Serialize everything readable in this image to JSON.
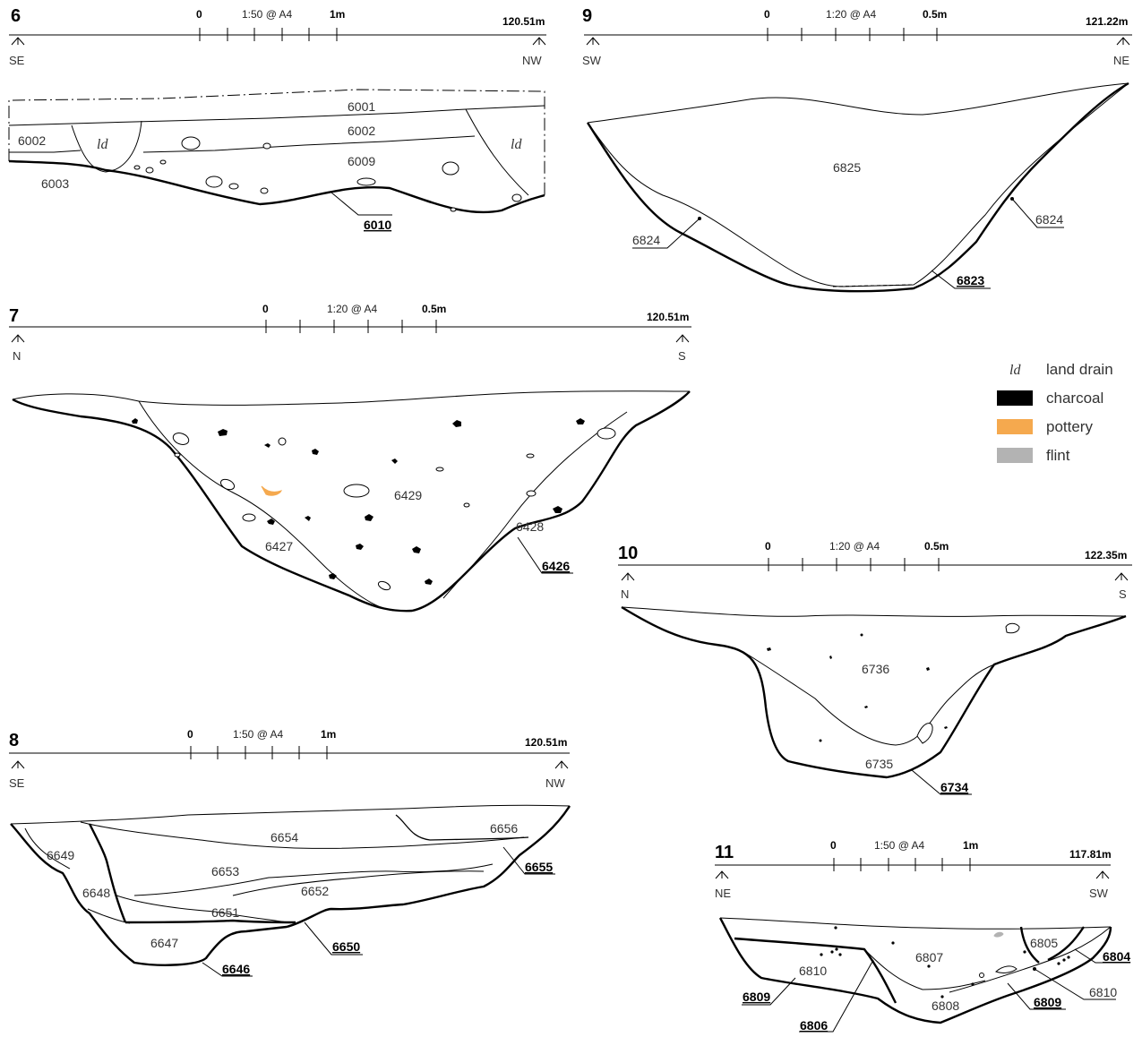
{
  "sections": [
    {
      "number": "6",
      "scale": {
        "zero": "0",
        "ratio": "1:50 @ A4",
        "end": "1m"
      },
      "elevation": "120.51m",
      "dir_left": "SE",
      "dir_right": "NW",
      "layers": [
        "6001",
        "6002",
        "6002",
        "6009",
        "6003"
      ],
      "fills_italic": [
        "ld",
        "ld"
      ],
      "cuts": [
        "6010"
      ]
    },
    {
      "number": "9",
      "scale": {
        "zero": "0",
        "ratio": "1:20 @ A4",
        "end": "0.5m"
      },
      "elevation": "121.22m",
      "dir_left": "SW",
      "dir_right": "NE",
      "layers": [
        "6825",
        "6824",
        "6824"
      ],
      "cuts": [
        "6823"
      ]
    },
    {
      "number": "7",
      "scale": {
        "zero": "0",
        "ratio": "1:20 @ A4",
        "end": "0.5m"
      },
      "elevation": "120.51m",
      "dir_left": "N",
      "dir_right": "S",
      "layers": [
        "6429",
        "6427",
        "6428"
      ],
      "cuts": [
        "6426"
      ]
    },
    {
      "number": "10",
      "scale": {
        "zero": "0",
        "ratio": "1:20 @ A4",
        "end": "0.5m"
      },
      "elevation": "122.35m",
      "dir_left": "N",
      "dir_right": "S",
      "layers": [
        "6736",
        "6735"
      ],
      "cuts": [
        "6734"
      ]
    },
    {
      "number": "8",
      "scale": {
        "zero": "0",
        "ratio": "1:50 @ A4",
        "end": "1m"
      },
      "elevation": "120.51m",
      "dir_left": "SE",
      "dir_right": "NW",
      "layers": [
        "6654",
        "6656",
        "6649",
        "6653",
        "6648",
        "6652",
        "6651",
        "6647"
      ],
      "cuts": [
        "6655",
        "6650",
        "6646"
      ]
    },
    {
      "number": "11",
      "scale": {
        "zero": "0",
        "ratio": "1:50 @ A4",
        "end": "1m"
      },
      "elevation": "117.81m",
      "dir_left": "NE",
      "dir_right": "SW",
      "layers": [
        "6805",
        "6807",
        "6810",
        "6808",
        "6810"
      ],
      "cuts": [
        "6804",
        "6809",
        "6809",
        "6806"
      ]
    }
  ],
  "legend": [
    {
      "symbol": "ld",
      "label": "land drain",
      "swatch": null
    },
    {
      "symbol": "",
      "label": "charcoal",
      "swatch": "#000000"
    },
    {
      "symbol": "",
      "label": "pottery",
      "swatch": "#f5a94e"
    },
    {
      "symbol": "",
      "label": "flint",
      "swatch": "#b3b3b3"
    }
  ],
  "colors": {
    "pottery": "#f5a94e",
    "flint": "#b3b3b3",
    "charcoal": "#000000"
  }
}
